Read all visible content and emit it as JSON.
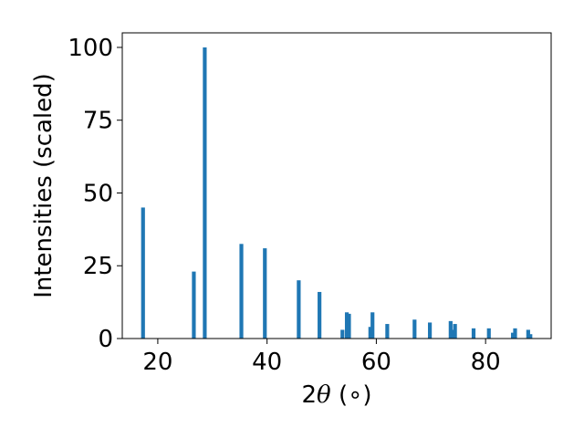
{
  "chart_data": {
    "type": "bar",
    "xlabel_prefix": "2",
    "xlabel_symbol": "θ",
    "xlabel_suffix": " (∘)",
    "ylabel": "Intensities (scaled)",
    "xlim": [
      13.5,
      92
    ],
    "ylim": [
      0,
      105
    ],
    "xticks": [
      20,
      40,
      60,
      80
    ],
    "yticks": [
      0,
      25,
      50,
      75,
      100
    ],
    "bar_width_deg": 0.7,
    "grid": false,
    "color": "#1f77b4",
    "bars": [
      {
        "x": 17.3,
        "y": 45
      },
      {
        "x": 26.6,
        "y": 23
      },
      {
        "x": 28.6,
        "y": 100
      },
      {
        "x": 35.3,
        "y": 32.5
      },
      {
        "x": 39.6,
        "y": 31
      },
      {
        "x": 45.8,
        "y": 20
      },
      {
        "x": 49.6,
        "y": 16
      },
      {
        "x": 53.8,
        "y": 3
      },
      {
        "x": 54.6,
        "y": 9
      },
      {
        "x": 55.0,
        "y": 8.5
      },
      {
        "x": 58.9,
        "y": 4
      },
      {
        "x": 59.3,
        "y": 9
      },
      {
        "x": 62.0,
        "y": 5
      },
      {
        "x": 67.0,
        "y": 6.5
      },
      {
        "x": 69.8,
        "y": 5.5
      },
      {
        "x": 73.6,
        "y": 6
      },
      {
        "x": 74.0,
        "y": 3
      },
      {
        "x": 74.4,
        "y": 5
      },
      {
        "x": 77.8,
        "y": 3.5
      },
      {
        "x": 80.6,
        "y": 3.5
      },
      {
        "x": 85.0,
        "y": 2
      },
      {
        "x": 85.4,
        "y": 3.5
      },
      {
        "x": 87.8,
        "y": 3
      },
      {
        "x": 88.2,
        "y": 1.5
      }
    ]
  }
}
